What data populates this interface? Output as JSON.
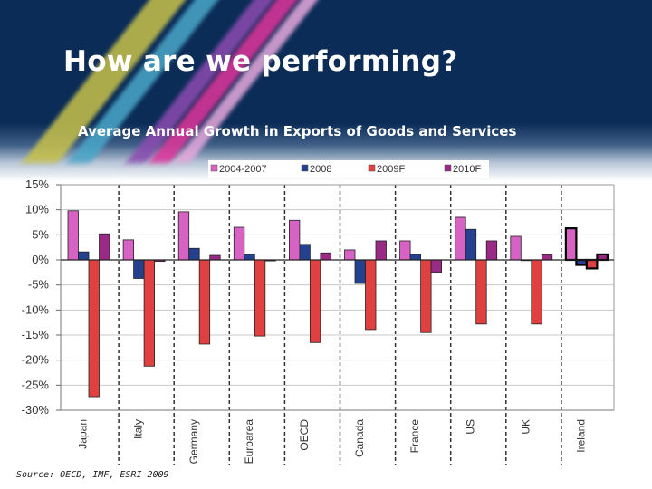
{
  "slide": {
    "title": "How are we performing?",
    "subtitle": "Average Annual Growth in Exports of Goods and Services",
    "source": "Source: OECD, IMF, ESRI 2009"
  },
  "chart_data": {
    "type": "bar",
    "title": "Average Annual Growth in Exports of Goods and Services",
    "xlabel": "",
    "ylabel": "",
    "ylim": [
      -30,
      15
    ],
    "yticks": [
      15,
      10,
      5,
      0,
      -5,
      -10,
      -15,
      -20,
      -25,
      -30
    ],
    "ytick_labels": [
      "15%",
      "10%",
      "5%",
      "0%",
      "-5%",
      "-10%",
      "-15%",
      "-20%",
      "-25%",
      "-30%"
    ],
    "grid": true,
    "legend_position": "top",
    "categories": [
      "Japan",
      "Italy",
      "Germany",
      "Euroarea",
      "OECD",
      "Canada",
      "France",
      "US",
      "UK",
      "Ireland"
    ],
    "highlighted_category": "Ireland",
    "series": [
      {
        "name": "2004-2007",
        "color": "#d663c4",
        "values": [
          9.8,
          4.0,
          9.6,
          6.5,
          7.9,
          2.0,
          3.8,
          8.5,
          4.7,
          6.3
        ]
      },
      {
        "name": "2008",
        "color": "#24418f",
        "values": [
          1.6,
          -3.7,
          2.3,
          1.1,
          3.1,
          -4.7,
          1.1,
          6.1,
          0.0,
          -1.0
        ]
      },
      {
        "name": "2009F",
        "color": "#e04040",
        "values": [
          -27.3,
          -21.2,
          -16.8,
          -15.2,
          -16.5,
          -13.9,
          -14.5,
          -12.8,
          -12.8,
          -1.7
        ]
      },
      {
        "name": "2010F",
        "color": "#9b2a86",
        "values": [
          5.2,
          -0.3,
          0.9,
          -0.2,
          1.4,
          3.8,
          -2.5,
          3.8,
          1.0,
          1.1
        ]
      }
    ]
  }
}
